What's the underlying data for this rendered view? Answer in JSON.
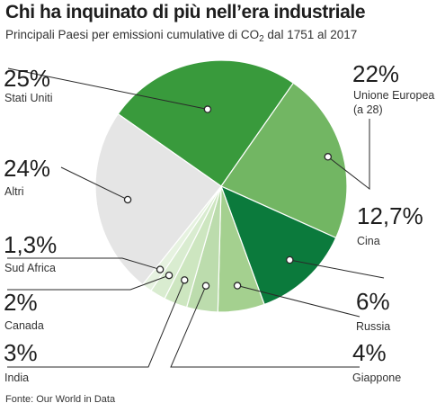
{
  "title": "Chi ha inquinato di più nell’era industriale",
  "subtitle": {
    "before": "Principali Paesi per emissioni cumulative di CO",
    "subscript": "2",
    "after": " dal 1751 al 2017"
  },
  "source": "Fonte: Our World in Data",
  "chart_data": {
    "type": "pie",
    "title": "Chi ha inquinato di più nell’era industriale",
    "subtitle": "Principali Paesi per emissioni cumulative di CO2 dal 1751 al 2017",
    "start_angle_deg": -55,
    "direction": "clockwise",
    "slices": [
      {
        "label": "Stati Uniti",
        "value": 25,
        "value_label": "25%",
        "color": "#399a3c"
      },
      {
        "label": "Unione Europea (a 28)",
        "value": 22,
        "value_label": "22%",
        "color": "#72b663"
      },
      {
        "label": "Cina",
        "value": 12.7,
        "value_label": "12,7%",
        "color": "#0b7a3c"
      },
      {
        "label": "Russia",
        "value": 6,
        "value_label": "6%",
        "color": "#a4d08f"
      },
      {
        "label": "Giappone",
        "value": 4,
        "value_label": "4%",
        "color": "#bcdcad"
      },
      {
        "label": "India",
        "value": 3,
        "value_label": "3%",
        "color": "#cde6c0"
      },
      {
        "label": "Canada",
        "value": 2,
        "value_label": "2%",
        "color": "#d9ecd0"
      },
      {
        "label": "Sud Africa",
        "value": 1.3,
        "value_label": "1,3%",
        "color": "#e6f2e0"
      },
      {
        "label": "Altri",
        "value": 24,
        "value_label": "24%",
        "color": "#e5e5e5"
      }
    ]
  }
}
